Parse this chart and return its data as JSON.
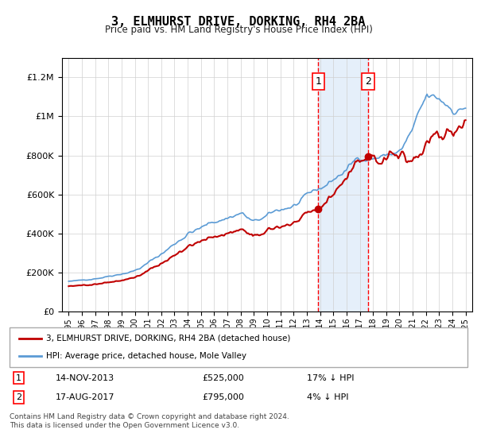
{
  "title": "3, ELMHURST DRIVE, DORKING, RH4 2BA",
  "subtitle": "Price paid vs. HM Land Registry's House Price Index (HPI)",
  "footer": "Contains HM Land Registry data © Crown copyright and database right 2024.\nThis data is licensed under the Open Government Licence v3.0.",
  "legend_line1": "3, ELMHURST DRIVE, DORKING, RH4 2BA (detached house)",
  "legend_line2": "HPI: Average price, detached house, Mole Valley",
  "sale1_label": "1",
  "sale1_date": "14-NOV-2013",
  "sale1_price": "£525,000",
  "sale1_hpi": "17% ↓ HPI",
  "sale2_label": "2",
  "sale2_date": "17-AUG-2017",
  "sale2_price": "£795,000",
  "sale2_hpi": "4% ↓ HPI",
  "hpi_color": "#5b9bd5",
  "price_color": "#c00000",
  "sale1_x_year": 2013.87,
  "sale2_x_year": 2017.63,
  "shade_color": "#dbe9f8",
  "vline_color": "#ff0000",
  "ylim_min": 0,
  "ylim_max": 1300000,
  "xlim_min": 1994.5,
  "xlim_max": 2025.5
}
